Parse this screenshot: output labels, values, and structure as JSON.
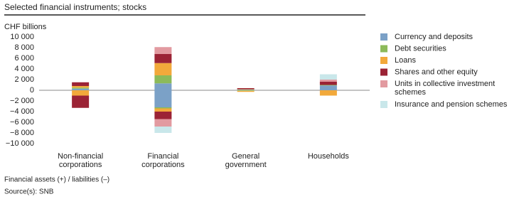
{
  "chart_data": {
    "type": "bar",
    "stacked": true,
    "title": "Selected financial instruments; stocks",
    "y_label": "CHF billions",
    "footnote": "Financial assets (+) / liabilities (–)",
    "source": "Source(s): SNB",
    "categories": [
      "Non-financial corporations",
      "Financial corporations",
      "General government",
      "Households"
    ],
    "ylim": [
      -10000,
      10000
    ],
    "yticks": [
      {
        "value": 10000,
        "label": "10 000"
      },
      {
        "value": 8000,
        "label": "8 000"
      },
      {
        "value": 6000,
        "label": "6 000"
      },
      {
        "value": 4000,
        "label": "4 000"
      },
      {
        "value": 2000,
        "label": "2 000"
      },
      0,
      {
        "value": -2000,
        "label": "−2 000"
      },
      {
        "value": -4000,
        "label": "−4 000"
      },
      {
        "value": -6000,
        "label": "−6 000"
      },
      {
        "value": -8000,
        "label": "−8 000"
      },
      {
        "value": -10000,
        "label": "−10 000"
      }
    ],
    "series": [
      {
        "name": "Currency and deposits",
        "color": "#7ba1c7",
        "assets": [
          300,
          1300,
          100,
          900
        ],
        "liabilities": [
          0,
          -3200,
          0,
          0
        ]
      },
      {
        "name": "Debt securities",
        "color": "#8cba5a",
        "assets": [
          200,
          1500,
          50,
          100
        ],
        "liabilities": [
          0,
          -200,
          -100,
          0
        ]
      },
      {
        "name": "Loans",
        "color": "#f2a93b",
        "assets": [
          300,
          2300,
          50,
          0
        ],
        "liabilities": [
          -1000,
          -600,
          -200,
          -1000
        ]
      },
      {
        "name": "Shares and other equity",
        "color": "#9b2335",
        "assets": [
          700,
          1700,
          200,
          600
        ],
        "liabilities": [
          -2300,
          -1400,
          0,
          0
        ]
      },
      {
        "name": "Units in collective investment schemes",
        "color": "#e29aa0",
        "assets": [
          0,
          1300,
          0,
          400
        ],
        "liabilities": [
          0,
          -1400,
          0,
          0
        ]
      },
      {
        "name": "Insurance and pension schemes",
        "color": "#c9e7ea",
        "assets": [
          0,
          0,
          0,
          1000
        ],
        "liabilities": [
          0,
          -1200,
          0,
          0
        ]
      }
    ]
  }
}
